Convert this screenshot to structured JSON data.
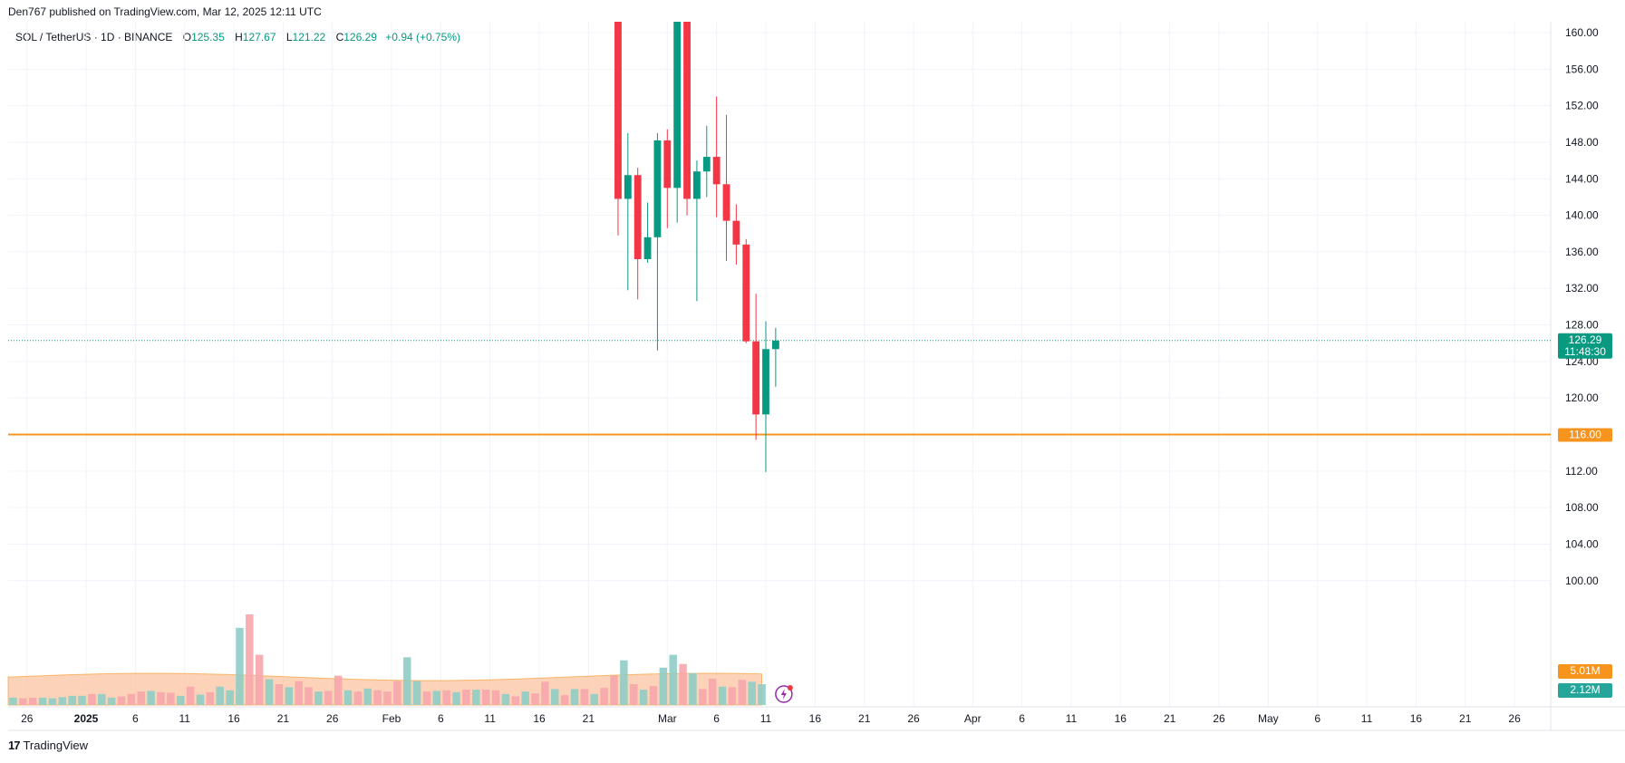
{
  "header": {
    "published_by": "Den767 published on TradingView.com, Mar 12, 2025 12:11 UTC"
  },
  "legend": {
    "symbol": "SOL / TetherUS · 1D · BINANCE",
    "o_label": "O",
    "o_value": "125.35",
    "h_label": "H",
    "h_value": "127.67",
    "l_label": "L",
    "l_value": "121.22",
    "c_label": "C",
    "c_value": "126.29",
    "change": "+0.94 (+0.75%)"
  },
  "footer": {
    "brand": "TradingView"
  },
  "colors": {
    "up": "#089981",
    "down": "#f23645",
    "vol_up": "#8fcdc5",
    "vol_down": "#f7a6ac",
    "vol_ma_fill": "#fbc4a0",
    "horizontal_line": "#f7941d",
    "grid": "#f0f3fa"
  },
  "chart_data": {
    "type": "candlestick",
    "symbol": "SOL / TetherUS",
    "interval": "1D",
    "exchange": "BINANCE",
    "y_ticks": [
      "160.00",
      "156.00",
      "152.00",
      "148.00",
      "144.00",
      "140.00",
      "136.00",
      "132.00",
      "128.00",
      "124.00",
      "120.00",
      "116.00",
      "112.00",
      "108.00",
      "104.00",
      "100.00"
    ],
    "ylim": [
      96,
      162
    ],
    "x_ticks": [
      {
        "label": "26",
        "date": "2024-12-26"
      },
      {
        "label": "2025",
        "date": "2025-01-01",
        "bold": true
      },
      {
        "label": "6",
        "date": "2025-01-06"
      },
      {
        "label": "11",
        "date": "2025-01-11"
      },
      {
        "label": "16",
        "date": "2025-01-16"
      },
      {
        "label": "21",
        "date": "2025-01-21"
      },
      {
        "label": "26",
        "date": "2025-01-26"
      },
      {
        "label": "Feb",
        "date": "2025-02-01"
      },
      {
        "label": "6",
        "date": "2025-02-06"
      },
      {
        "label": "11",
        "date": "2025-02-11"
      },
      {
        "label": "16",
        "date": "2025-02-16"
      },
      {
        "label": "21",
        "date": "2025-02-21"
      },
      {
        "label": "Mar",
        "date": "2025-03-01"
      },
      {
        "label": "6",
        "date": "2025-03-06"
      },
      {
        "label": "11",
        "date": "2025-03-11"
      },
      {
        "label": "16",
        "date": "2025-03-16"
      },
      {
        "label": "21",
        "date": "2025-03-21"
      },
      {
        "label": "26",
        "date": "2025-03-26"
      },
      {
        "label": "Apr",
        "date": "2025-04-01"
      },
      {
        "label": "6",
        "date": "2025-04-06"
      },
      {
        "label": "11",
        "date": "2025-04-11"
      },
      {
        "label": "16",
        "date": "2025-04-16"
      },
      {
        "label": "21",
        "date": "2025-04-21"
      },
      {
        "label": "26",
        "date": "2025-04-26"
      },
      {
        "label": "May",
        "date": "2025-05-01"
      },
      {
        "label": "6",
        "date": "2025-05-06"
      },
      {
        "label": "11",
        "date": "2025-05-11"
      },
      {
        "label": "16",
        "date": "2025-05-16"
      },
      {
        "label": "21",
        "date": "2025-05-21"
      },
      {
        "label": "26",
        "date": "2025-05-26"
      }
    ],
    "candles": [
      {
        "date": "2025-02-24",
        "o": 170.0,
        "h": 170.0,
        "l": 137.8,
        "c": 141.8
      },
      {
        "date": "2025-02-25",
        "o": 141.8,
        "h": 149.0,
        "l": 131.8,
        "c": 144.4
      },
      {
        "date": "2025-02-26",
        "o": 144.4,
        "h": 145.2,
        "l": 130.8,
        "c": 135.2
      },
      {
        "date": "2025-02-27",
        "o": 135.2,
        "h": 141.4,
        "l": 134.8,
        "c": 137.6
      },
      {
        "date": "2025-02-28",
        "o": 137.6,
        "h": 149.0,
        "l": 125.2,
        "c": 148.2
      },
      {
        "date": "2025-03-01",
        "o": 148.2,
        "h": 149.4,
        "l": 138.6,
        "c": 143.0
      },
      {
        "date": "2025-03-02",
        "o": 143.0,
        "h": 180.0,
        "l": 139.2,
        "c": 180.0
      },
      {
        "date": "2025-03-03",
        "o": 180.0,
        "h": 180.0,
        "l": 140.0,
        "c": 141.8
      },
      {
        "date": "2025-03-04",
        "o": 141.8,
        "h": 146.0,
        "l": 130.6,
        "c": 144.8
      },
      {
        "date": "2025-03-05",
        "o": 144.8,
        "h": 149.8,
        "l": 142.0,
        "c": 146.4
      },
      {
        "date": "2025-03-06",
        "o": 146.4,
        "h": 153.0,
        "l": 139.8,
        "c": 143.4
      },
      {
        "date": "2025-03-07",
        "o": 143.4,
        "h": 151.0,
        "l": 135.0,
        "c": 139.4
      },
      {
        "date": "2025-03-08",
        "o": 139.4,
        "h": 141.2,
        "l": 134.6,
        "c": 136.8
      },
      {
        "date": "2025-03-09",
        "o": 136.8,
        "h": 137.4,
        "l": 126.0,
        "c": 126.2
      },
      {
        "date": "2025-03-10",
        "o": 126.2,
        "h": 131.4,
        "l": 115.4,
        "c": 118.2
      },
      {
        "date": "2025-03-11",
        "o": 118.2,
        "h": 128.4,
        "l": 111.9,
        "c": 125.35
      },
      {
        "date": "2025-03-12",
        "o": 125.35,
        "h": 127.67,
        "l": 121.22,
        "c": 126.29
      }
    ],
    "volume_heights_relative": [
      0.12,
      0.11,
      0.12,
      0.12,
      0.11,
      0.13,
      0.15,
      0.15,
      0.18,
      0.18,
      0.12,
      0.14,
      0.18,
      0.22,
      0.23,
      0.21,
      0.2,
      0.15,
      0.3,
      0.17,
      0.21,
      0.3,
      0.24,
      1.26,
      1.48,
      0.82,
      0.42,
      0.34,
      0.29,
      0.39,
      0.29,
      0.22,
      0.23,
      0.48,
      0.24,
      0.22,
      0.27,
      0.24,
      0.22,
      0.39,
      0.78,
      0.39,
      0.22,
      0.23,
      0.24,
      0.21,
      0.25,
      0.25,
      0.25,
      0.24,
      0.18,
      0.14,
      0.22,
      0.19,
      0.38,
      0.26,
      0.16,
      0.26,
      0.26,
      0.18,
      0.28,
      0.48,
      0.73,
      0.34,
      0.25,
      0.31,
      0.61,
      0.82,
      0.67,
      0.52,
      0.26,
      0.43,
      0.3,
      0.29,
      0.41,
      0.38,
      0.34
    ],
    "volume_colors": "match_candle_direction",
    "horizontal_line": {
      "price": 116.0,
      "label": "116.00"
    },
    "last_price": {
      "value": "126.29",
      "countdown": "11:48:30"
    },
    "volume_labels": {
      "ma": "5.01M",
      "current": "2.12M"
    }
  }
}
